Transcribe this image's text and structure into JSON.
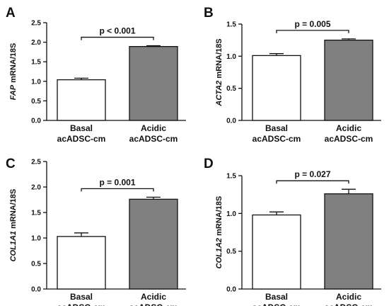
{
  "colors": {
    "basal_fill": "#ffffff",
    "acidic_fill": "#808080",
    "ink": "#111111"
  },
  "chart_data": [
    {
      "type": "bar",
      "panel": "A",
      "gene": "FAP",
      "ylabel_suffix": " mRNA/18S",
      "categories": [
        [
          "Basal",
          "acADSC-cm"
        ],
        [
          "Acidic",
          "acADSC-cm"
        ]
      ],
      "values": [
        1.04,
        1.89
      ],
      "errors": [
        0.04,
        0.02
      ],
      "ylim": [
        0,
        2.5
      ],
      "yticks": [
        "0.0",
        "0.5",
        "1.0",
        "1.5",
        "2.0",
        "2.5"
      ],
      "annotation": "p < 0.001"
    },
    {
      "type": "bar",
      "panel": "B",
      "gene": "ACTA2",
      "ylabel_suffix": " mRNA/18S",
      "categories": [
        [
          "Basal",
          "acADSC-cm"
        ],
        [
          "Acidic",
          "acADSC-cm"
        ]
      ],
      "values": [
        1.01,
        1.25
      ],
      "errors": [
        0.03,
        0.02
      ],
      "ylim": [
        0,
        1.5
      ],
      "yticks": [
        "0.0",
        "0.5",
        "1.0",
        "1.5"
      ],
      "annotation": "p = 0.005"
    },
    {
      "type": "bar",
      "panel": "C",
      "gene": "COL1A1",
      "ylabel_suffix": " mRNA/18S",
      "categories": [
        [
          "Basal",
          "acADSC-cm"
        ],
        [
          "Acidic",
          "acADSC-cm"
        ]
      ],
      "values": [
        1.03,
        1.76
      ],
      "errors": [
        0.07,
        0.04
      ],
      "ylim": [
        0,
        2.5
      ],
      "yticks": [
        "0.0",
        "0.5",
        "1.0",
        "1.5",
        "2.0",
        "2.5"
      ],
      "annotation": "p = 0.001"
    },
    {
      "type": "bar",
      "panel": "D",
      "gene": "COL1A2",
      "ylabel_suffix": " mRNA/18S",
      "categories": [
        [
          "Basal",
          "acADSC-cm"
        ],
        [
          "Acidic",
          "acADSC-cm"
        ]
      ],
      "values": [
        0.98,
        1.26
      ],
      "errors": [
        0.04,
        0.06
      ],
      "ylim": [
        0,
        1.5
      ],
      "yticks": [
        "0.0",
        "0.5",
        "1.0",
        "1.5"
      ],
      "annotation": "p = 0.027"
    }
  ]
}
